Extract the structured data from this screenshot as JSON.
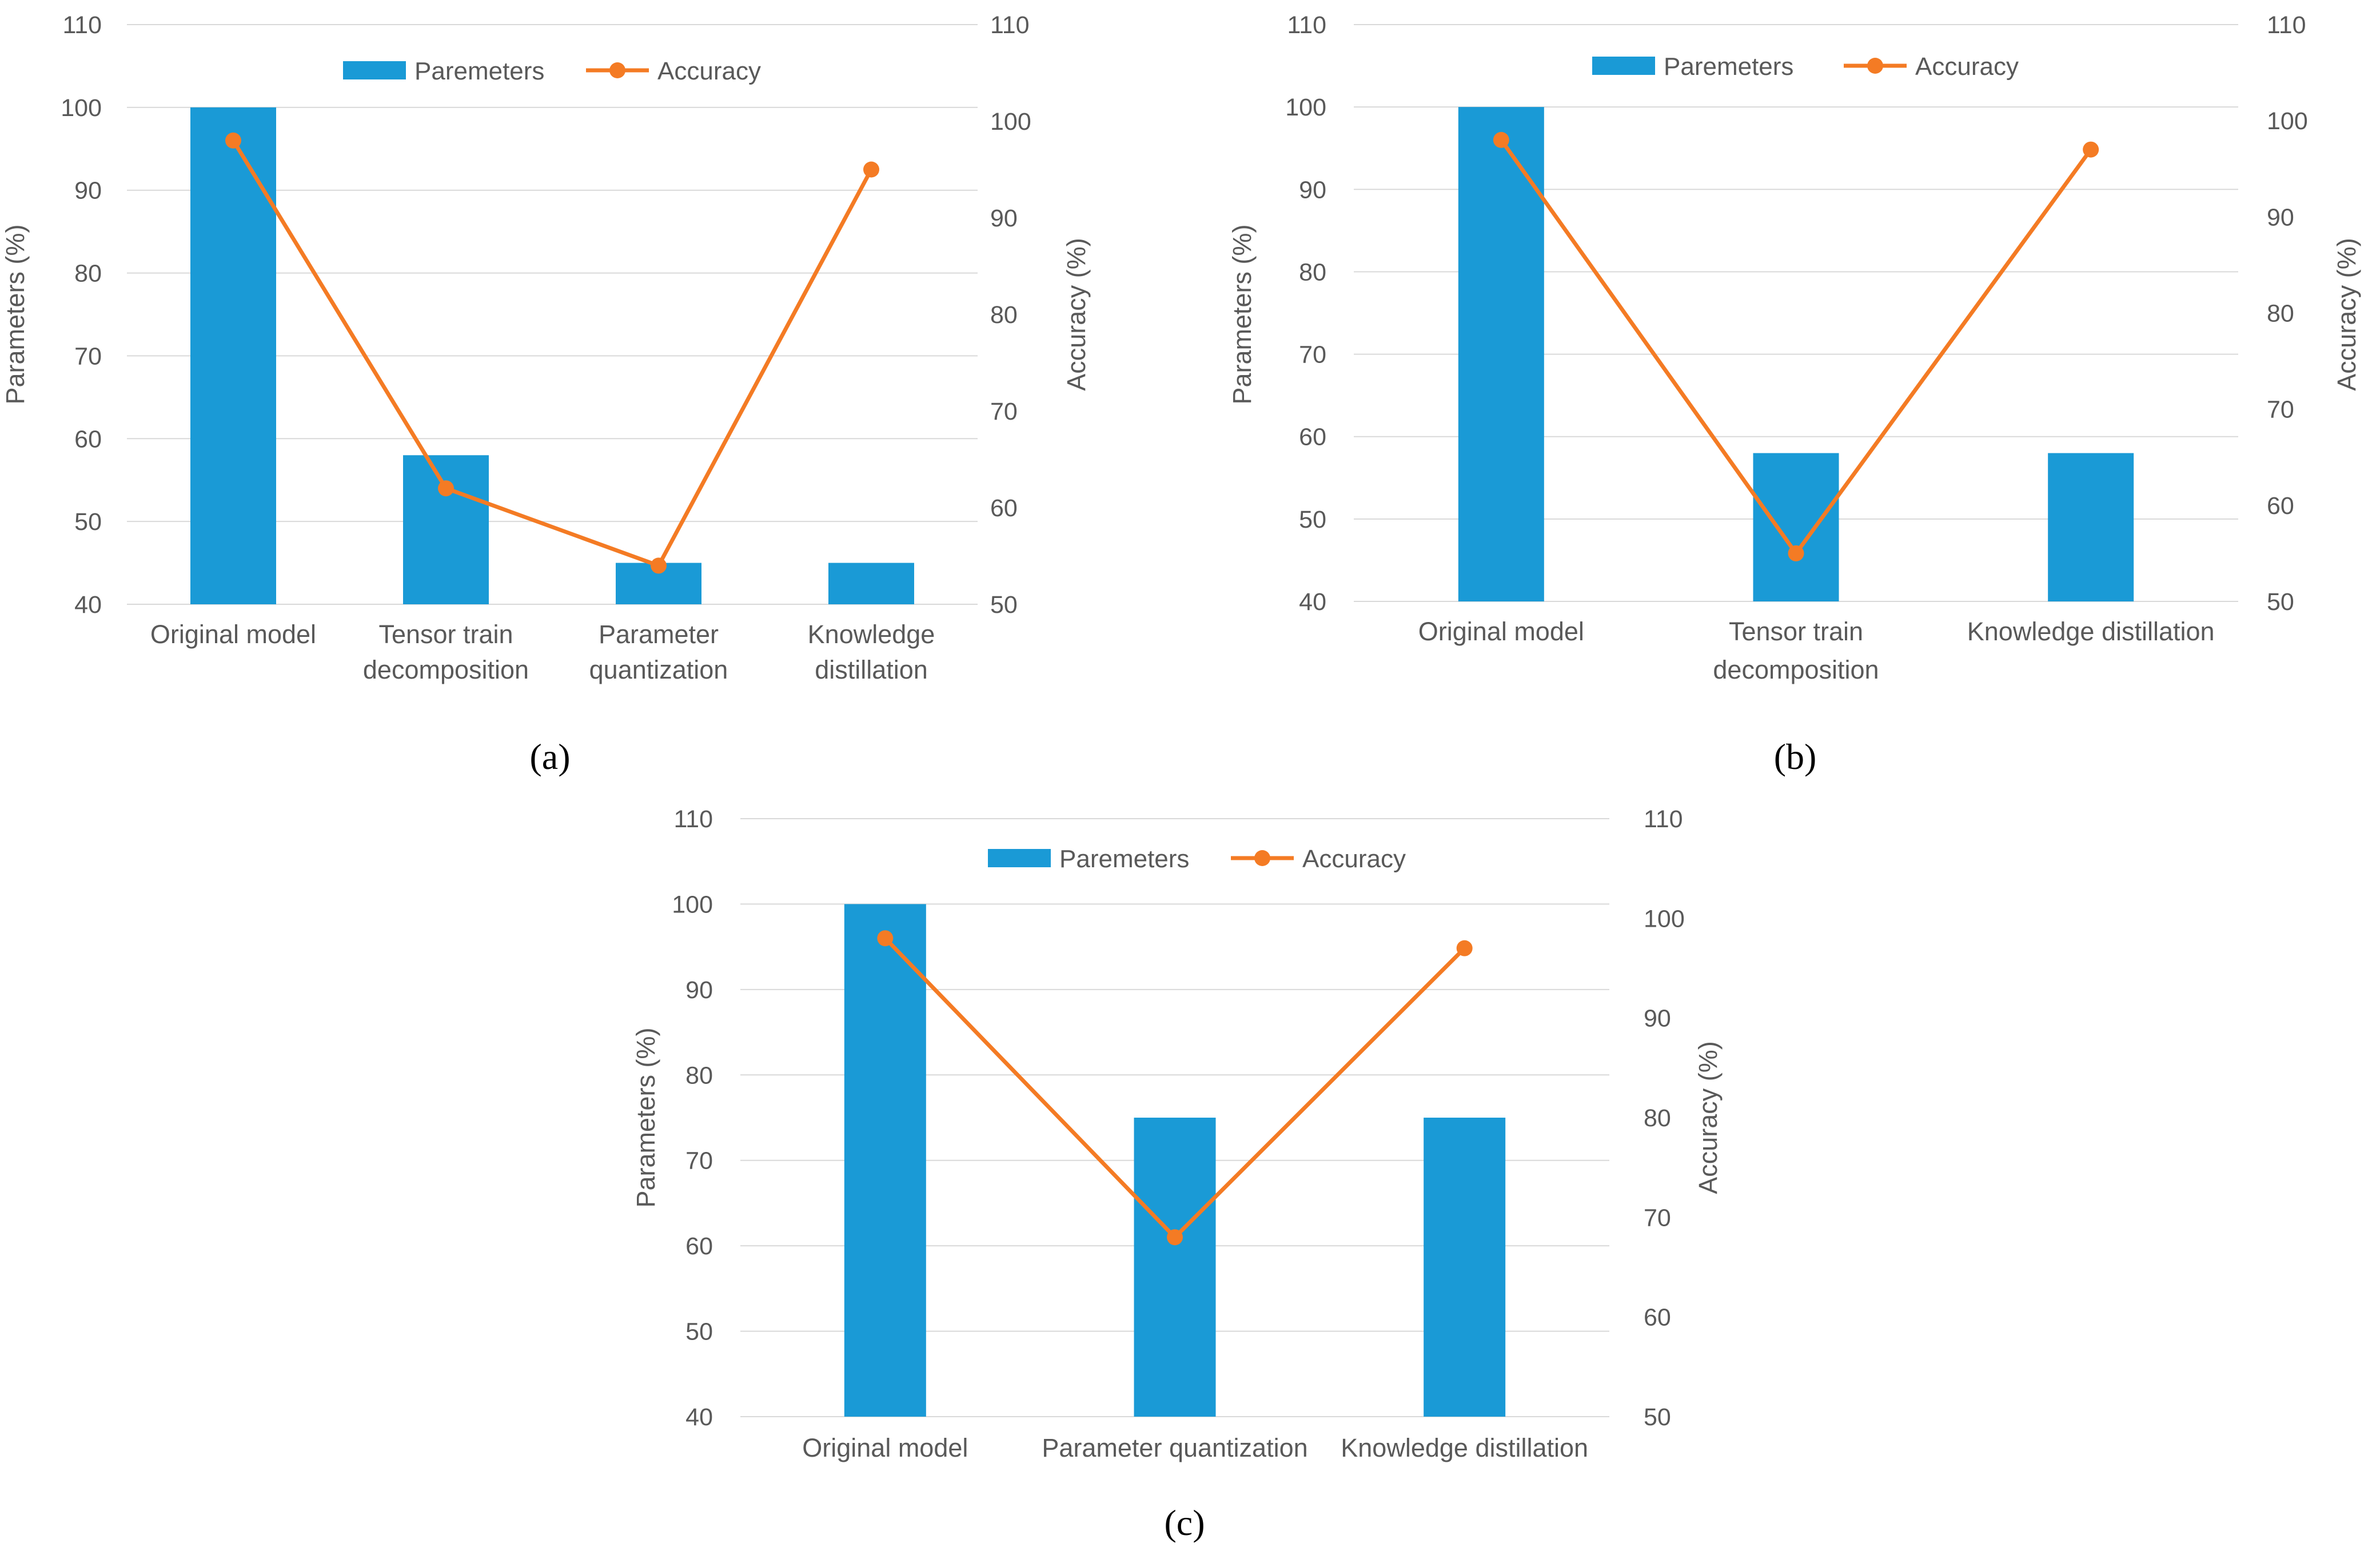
{
  "legend": {
    "bar_label": "Paremeters",
    "line_label": "Accuracy"
  },
  "colors": {
    "bar": "#1a9ad6",
    "line": "#f47b24",
    "grid": "#d9d9d9",
    "text": "#595959"
  },
  "chart_data": [
    {
      "type": "bar+line",
      "panel_label": "(a)",
      "ylabel_left": "Parameters (%)",
      "ylabel_right": "Accuracy (%)",
      "ylim_left": [
        40,
        110
      ],
      "ylim_right": [
        50,
        110
      ],
      "yticks_left": [
        40,
        50,
        60,
        70,
        80,
        90,
        100,
        110
      ],
      "yticks_right": [
        50,
        60,
        70,
        80,
        90,
        100,
        110
      ],
      "categories": [
        [
          "Original model"
        ],
        [
          "Tensor train",
          "decomposition"
        ],
        [
          "Parameter",
          "quantization"
        ],
        [
          "Knowledge",
          "distillation"
        ]
      ],
      "series": [
        {
          "name": "Paremeters",
          "kind": "bar",
          "axis": "left",
          "values": [
            100,
            58,
            45,
            45
          ]
        },
        {
          "name": "Accuracy",
          "kind": "line",
          "axis": "right",
          "values": [
            98,
            62,
            54,
            95
          ]
        }
      ],
      "grid": true,
      "legend_position": "top"
    },
    {
      "type": "bar+line",
      "panel_label": "(b)",
      "ylabel_left": "Parameters (%)",
      "ylabel_right": "Accuracy (%)",
      "ylim_left": [
        40,
        110
      ],
      "ylim_right": [
        50,
        110
      ],
      "yticks_left": [
        40,
        50,
        60,
        70,
        80,
        90,
        100,
        110
      ],
      "yticks_right": [
        50,
        60,
        70,
        80,
        90,
        100,
        110
      ],
      "categories": [
        [
          "Original model"
        ],
        [
          "Tensor train",
          "decomposition"
        ],
        [
          "Knowledge distillation"
        ]
      ],
      "series": [
        {
          "name": "Paremeters",
          "kind": "bar",
          "axis": "left",
          "values": [
            100,
            58,
            58
          ]
        },
        {
          "name": "Accuracy",
          "kind": "line",
          "axis": "right",
          "values": [
            98,
            55,
            97
          ]
        }
      ],
      "grid": true,
      "legend_position": "top"
    },
    {
      "type": "bar+line",
      "panel_label": "(c)",
      "ylabel_left": "Parameters (%)",
      "ylabel_right": "Accuracy (%)",
      "ylim_left": [
        40,
        110
      ],
      "ylim_right": [
        50,
        110
      ],
      "yticks_left": [
        40,
        50,
        60,
        70,
        80,
        90,
        100,
        110
      ],
      "yticks_right": [
        50,
        60,
        70,
        80,
        90,
        100,
        110
      ],
      "categories": [
        [
          "Original model"
        ],
        [
          "Parameter quantization"
        ],
        [
          "Knowledge distillation"
        ]
      ],
      "series": [
        {
          "name": "Paremeters",
          "kind": "bar",
          "axis": "left",
          "values": [
            100,
            75,
            75
          ]
        },
        {
          "name": "Accuracy",
          "kind": "line",
          "axis": "right",
          "values": [
            98,
            68,
            97
          ]
        }
      ],
      "grid": true,
      "legend_position": "top"
    }
  ]
}
